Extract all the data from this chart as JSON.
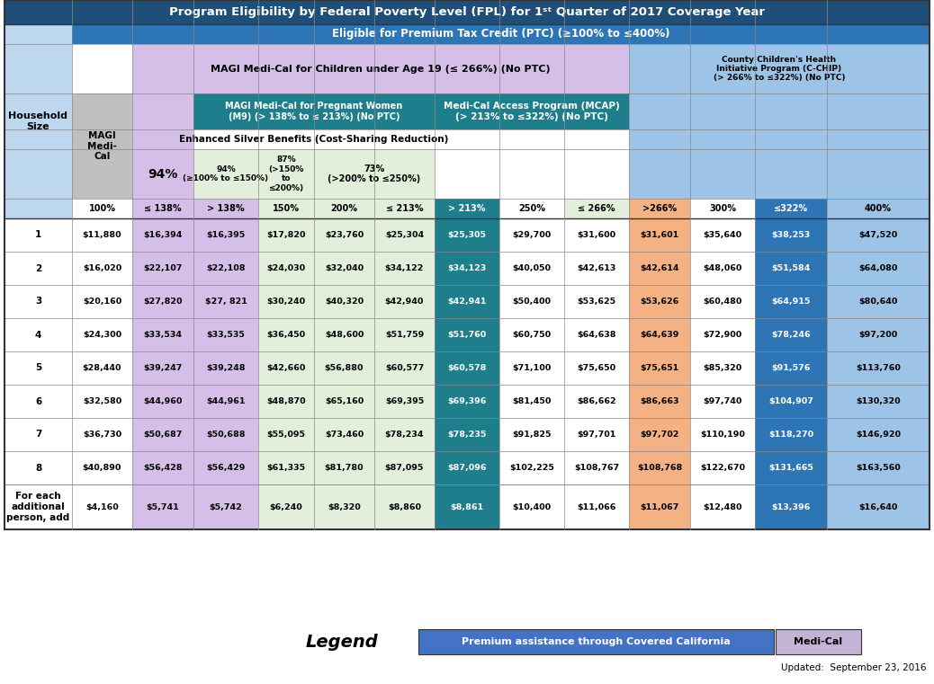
{
  "title": "Program Eligibility by Federal Poverty Level (FPL) for 1st Quarter of 2017 Coverage Year",
  "subtitle": "Eligible for Premium Tax Credit (PTC) (≥100% to ≤400%)",
  "colors": {
    "title_bg": "#1f4e79",
    "subtitle_bg": "#2e75b6",
    "header_light_blue": "#bdd7ee",
    "magi_purple": "#d5bfe8",
    "green_light": "#e2efda",
    "teal_dark": "#1f7e8c",
    "peach": "#f4b183",
    "blue_dark": "#2e75b6",
    "light_blue": "#9dc3e6",
    "gray_header": "#bfbfbf",
    "white": "#ffffff",
    "county_chip_bg": "#9dc3e6",
    "legend_blue": "#4472c4",
    "legend_purple": "#c5b3d6"
  },
  "col_headers": [
    "100%",
    "≤ 138%",
    "> 138%",
    "150%",
    "200%",
    "≤ 213%",
    "> 213%",
    "250%",
    "≤ 266%",
    ">266%",
    "300%",
    "≤322%",
    "400%"
  ],
  "row_labels": [
    "1",
    "2",
    "3",
    "4",
    "5",
    "6",
    "7",
    "8",
    "For each\nadditional\nperson, add"
  ],
  "data": [
    [
      "$11,880",
      "$16,394",
      "$16,395",
      "$17,820",
      "$23,760",
      "$25,304",
      "$25,305",
      "$29,700",
      "$31,600",
      "$31,601",
      "$35,640",
      "$38,253",
      "$47,520"
    ],
    [
      "$16,020",
      "$22,107",
      "$22,108",
      "$24,030",
      "$32,040",
      "$34,122",
      "$34,123",
      "$40,050",
      "$42,613",
      "$42,614",
      "$48,060",
      "$51,584",
      "$64,080"
    ],
    [
      "$20,160",
      "$27,820",
      "$27, 821",
      "$30,240",
      "$40,320",
      "$42,940",
      "$42,941",
      "$50,400",
      "$53,625",
      "$53,626",
      "$60,480",
      "$64,915",
      "$80,640"
    ],
    [
      "$24,300",
      "$33,534",
      "$33,535",
      "$36,450",
      "$48,600",
      "$51,759",
      "$51,760",
      "$60,750",
      "$64,638",
      "$64,639",
      "$72,900",
      "$78,246",
      "$97,200"
    ],
    [
      "$28,440",
      "$39,247",
      "$39,248",
      "$42,660",
      "$56,880",
      "$60,577",
      "$60,578",
      "$71,100",
      "$75,650",
      "$75,651",
      "$85,320",
      "$91,576",
      "$113,760"
    ],
    [
      "$32,580",
      "$44,960",
      "$44,961",
      "$48,870",
      "$65,160",
      "$69,395",
      "$69,396",
      "$81,450",
      "$86,662",
      "$86,663",
      "$97,740",
      "$104,907",
      "$130,320"
    ],
    [
      "$36,730",
      "$50,687",
      "$50,688",
      "$55,095",
      "$73,460",
      "$78,234",
      "$78,235",
      "$91,825",
      "$97,701",
      "$97,702",
      "$110,190",
      "$118,270",
      "$146,920"
    ],
    [
      "$40,890",
      "$56,428",
      "$56,429",
      "$61,335",
      "$81,780",
      "$87,095",
      "$87,096",
      "$102,225",
      "$108,767",
      "$108,768",
      "$122,670",
      "$131,665",
      "$163,560"
    ],
    [
      "$4,160",
      "$5,741",
      "$5,742",
      "$6,240",
      "$8,320",
      "$8,860",
      "$8,861",
      "$10,400",
      "$11,066",
      "$11,067",
      "$12,480",
      "$13,396",
      "$16,640"
    ]
  ]
}
